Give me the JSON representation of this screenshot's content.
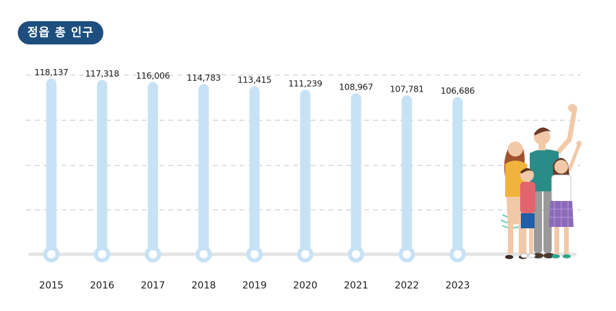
{
  "title": "정읍 총 인구",
  "colors": {
    "title_bg": "#1d4e7e",
    "bar": "#c7e2f5",
    "baseline": "#e4e4e4",
    "grid": "#cfcfcf",
    "text": "#1a1a1a"
  },
  "illustration": "family-illustration",
  "chart_data": {
    "type": "bar",
    "title": "정읍 총 인구",
    "categories": [
      "2015",
      "2016",
      "2017",
      "2018",
      "2019",
      "2020",
      "2021",
      "2022",
      "2023"
    ],
    "values": [
      118137,
      117318,
      116006,
      114783,
      113415,
      111239,
      108967,
      107781,
      106686
    ],
    "value_labels": [
      "118,137",
      "117,318",
      "116,006",
      "114,783",
      "113,415",
      "111,239",
      "108,967",
      "107,781",
      "106,686"
    ],
    "grid": true,
    "legend": "none"
  }
}
